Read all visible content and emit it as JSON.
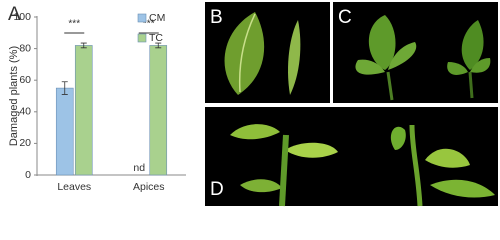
{
  "panel_labels": [
    "A",
    "B",
    "C",
    "D"
  ],
  "chart_data": {
    "type": "bar",
    "y_label": "Damaged plants (%)",
    "categories": [
      "Leaves",
      "Apices"
    ],
    "series": [
      {
        "name": "CM",
        "color": "#9dc3e6",
        "values": [
          55,
          null
        ],
        "errors": [
          4,
          null
        ]
      },
      {
        "name": "TC",
        "color": "#a9d18e",
        "values": [
          82,
          82
        ],
        "errors": [
          1.5,
          1.5
        ]
      }
    ],
    "annotations": [
      "***",
      "***",
      "nd"
    ],
    "ylim": [
      0,
      100
    ],
    "yticks": [
      0,
      20,
      40,
      60,
      80,
      100
    ],
    "legend": "top-right"
  }
}
